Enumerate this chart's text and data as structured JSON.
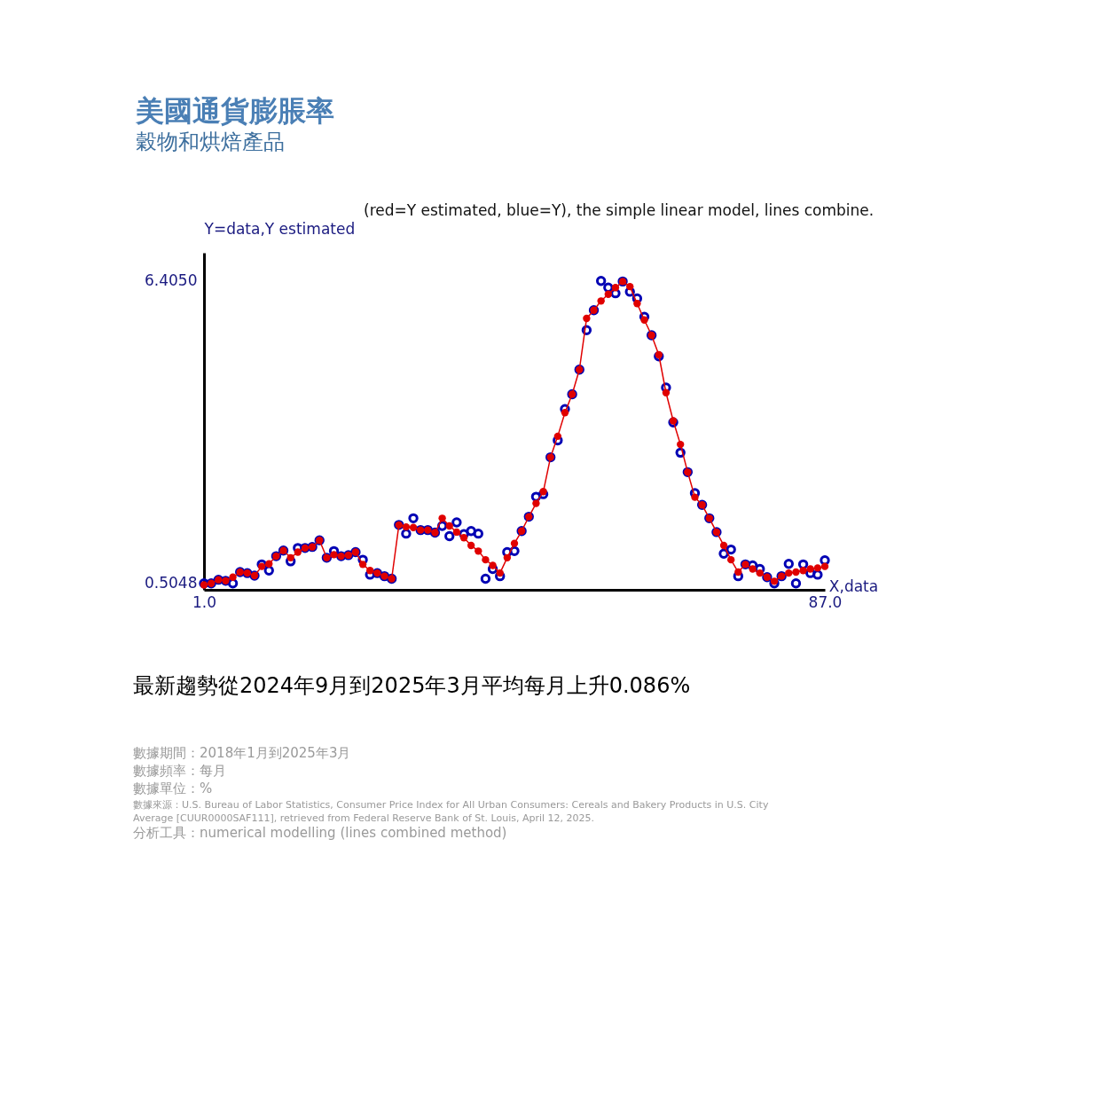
{
  "chart_data": {
    "type": "line",
    "title": "美國通貨膨脹率",
    "subtitle": "穀物和烘焙產品",
    "ylabel": "Y=data,Y estimated",
    "xlabel": "X,data",
    "x": [
      1,
      2,
      3,
      4,
      5,
      6,
      7,
      8,
      9,
      10,
      11,
      12,
      13,
      14,
      15,
      16,
      17,
      18,
      19,
      20,
      21,
      22,
      23,
      24,
      25,
      26,
      27,
      28,
      29,
      30,
      31,
      32,
      33,
      34,
      35,
      36,
      37,
      38,
      39,
      40,
      41,
      42,
      43,
      44,
      45,
      46,
      47,
      48,
      49,
      50,
      51,
      52,
      53,
      54,
      55,
      56,
      57,
      58,
      59,
      60,
      61,
      62,
      63,
      64,
      65,
      66,
      67,
      68,
      69,
      70,
      71,
      72,
      73,
      74,
      75,
      76,
      77,
      78,
      79,
      80,
      81,
      82,
      83,
      84,
      85,
      86,
      87
    ],
    "series": [
      {
        "type": "scatter",
        "color": "#0000b4",
        "values": [
          0.5,
          0.5,
          0.57,
          0.55,
          0.5,
          0.72,
          0.7,
          0.65,
          0.87,
          0.75,
          1.03,
          1.14,
          0.93,
          1.19,
          1.19,
          1.21,
          1.34,
          1.0,
          1.13,
          1.03,
          1.05,
          1.11,
          0.96,
          0.67,
          0.7,
          0.64,
          0.59,
          1.64,
          1.47,
          1.77,
          1.54,
          1.54,
          1.49,
          1.62,
          1.42,
          1.69,
          1.46,
          1.52,
          1.47,
          0.59,
          0.78,
          0.64,
          1.11,
          1.13,
          1.52,
          1.8,
          2.19,
          2.24,
          2.96,
          3.29,
          3.9,
          4.19,
          4.67,
          5.44,
          5.83,
          6.4,
          6.27,
          6.16,
          6.39,
          6.19,
          6.06,
          5.7,
          5.34,
          4.93,
          4.32,
          3.64,
          3.05,
          2.67,
          2.26,
          2.03,
          1.77,
          1.5,
          1.08,
          1.16,
          0.64,
          0.87,
          0.85,
          0.78,
          0.62,
          0.5,
          0.64,
          0.88,
          0.5,
          0.87,
          0.7,
          0.67,
          0.95
        ]
      },
      {
        "color": "#e00000",
        "values": [
          0.47,
          0.5,
          0.57,
          0.55,
          0.62,
          0.72,
          0.7,
          0.65,
          0.83,
          0.88,
          1.03,
          1.14,
          1.0,
          1.11,
          1.19,
          1.21,
          1.34,
          1.0,
          1.06,
          1.03,
          1.05,
          1.11,
          0.87,
          0.75,
          0.7,
          0.64,
          0.59,
          1.64,
          1.6,
          1.59,
          1.54,
          1.54,
          1.49,
          1.77,
          1.62,
          1.5,
          1.39,
          1.24,
          1.13,
          0.96,
          0.85,
          0.7,
          1.0,
          1.28,
          1.52,
          1.8,
          2.06,
          2.29,
          2.96,
          3.37,
          3.83,
          4.19,
          4.67,
          5.67,
          5.83,
          6.01,
          6.14,
          6.27,
          6.39,
          6.29,
          5.96,
          5.64,
          5.34,
          4.96,
          4.22,
          3.67,
          3.21,
          2.67,
          2.18,
          2.03,
          1.77,
          1.5,
          1.24,
          0.96,
          0.72,
          0.87,
          0.78,
          0.7,
          0.62,
          0.54,
          0.64,
          0.7,
          0.72,
          0.75,
          0.78,
          0.8,
          0.83
        ]
      }
    ],
    "xlim": [
      1,
      87
    ],
    "xticks": [
      {
        "value": 1,
        "label": "1.0"
      },
      {
        "value": 87,
        "label": "87.0"
      }
    ],
    "ylim": [
      0.374,
      6.95
    ],
    "yticks": [
      0.5048,
      {
        "value": 6.405,
        "label": "6.4050"
      }
    ],
    "marker": "circle",
    "annotations": [
      "(red=Y estimated, blue=Y), the simple linear model, lines combine.",
      "最新趨勢從2024年9月到2025年3月平均每月上升0.086%",
      "數據期間：2018年1月到2025年3月",
      "數據頻率：每月",
      "數據單位：%",
      "數據來源：U.S. Bureau of Labor Statistics, Consumer Price Index for All Urban Consumers: Cereals and Bakery Products in U.S. City",
      "Average [CUUR0000SAF111], retrieved from Federal Reserve Bank of St. Louis, April 12, 2025.",
      "分析工具：numerical modelling (lines combined method)"
    ]
  }
}
